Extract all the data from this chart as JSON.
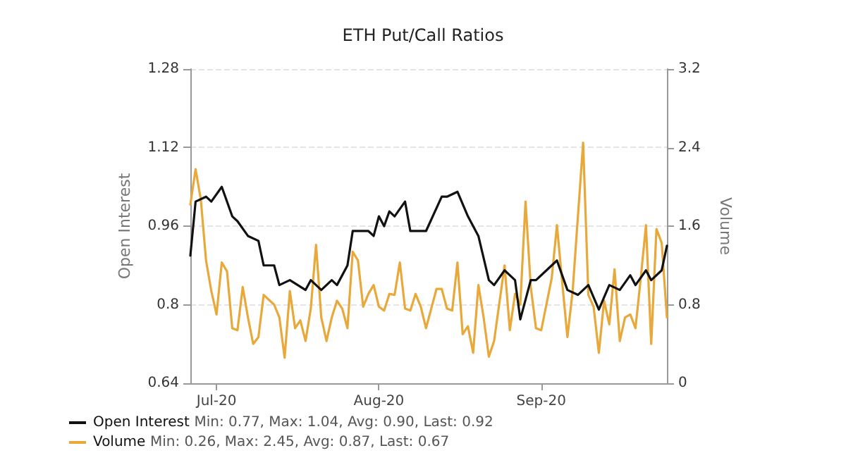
{
  "chart_data": {
    "type": "line",
    "title": "ETH Put/Call Ratios",
    "ylabel": "Open Interest",
    "y2label": "Volume",
    "xlim": [
      "2020-06-26",
      "2020-09-25"
    ],
    "xticks": [
      {
        "value": "2020-07-01",
        "label": "Jul-20"
      },
      {
        "value": "2020-08-01",
        "label": "Aug-20"
      },
      {
        "value": "2020-09-01",
        "label": "Sep-20"
      }
    ],
    "ylim": [
      0.64,
      1.28
    ],
    "yticks": [
      0.64,
      0.8,
      0.96,
      1.12,
      1.28
    ],
    "y2lim": [
      0,
      3.2
    ],
    "y2ticks": [
      0,
      0.8,
      1.6,
      2.4,
      3.2
    ],
    "grid": "y",
    "legend": "bottom left",
    "marker": "none",
    "line_style": "solid",
    "annotations": [
      "Min: 0.77, Max: 1.04, Avg: 0.90, Last: 0.92",
      "Min: 0.26, Max: 2.45, Avg: 0.87, Last: 0.67"
    ],
    "series": [
      {
        "name": "Open Interest",
        "color": "#111111",
        "x": [
          "2020-06-26",
          "2020-06-27",
          "2020-06-29",
          "2020-06-30",
          "2020-07-02",
          "2020-07-04",
          "2020-07-05",
          "2020-07-07",
          "2020-07-09",
          "2020-07-10",
          "2020-07-12",
          "2020-07-13",
          "2020-07-15",
          "2020-07-18",
          "2020-07-19",
          "2020-07-21",
          "2020-07-23",
          "2020-07-24",
          "2020-07-26",
          "2020-07-27",
          "2020-07-30",
          "2020-07-31",
          "2020-08-01",
          "2020-08-02",
          "2020-08-03",
          "2020-08-04",
          "2020-08-06",
          "2020-08-07",
          "2020-08-08",
          "2020-08-10",
          "2020-08-13",
          "2020-08-14",
          "2020-08-16",
          "2020-08-18",
          "2020-08-20",
          "2020-08-22",
          "2020-08-23",
          "2020-08-25",
          "2020-08-27",
          "2020-08-28",
          "2020-08-30",
          "2020-08-31",
          "2020-09-03",
          "2020-09-04",
          "2020-09-06",
          "2020-09-08",
          "2020-09-10",
          "2020-09-12",
          "2020-09-14",
          "2020-09-16",
          "2020-09-18",
          "2020-09-19",
          "2020-09-21",
          "2020-09-22",
          "2020-09-24",
          "2020-09-25"
        ],
        "values": [
          0.9,
          1.01,
          1.02,
          1.01,
          1.04,
          0.98,
          0.97,
          0.94,
          0.93,
          0.88,
          0.88,
          0.84,
          0.85,
          0.83,
          0.85,
          0.83,
          0.85,
          0.84,
          0.88,
          0.95,
          0.95,
          0.94,
          0.98,
          0.96,
          0.99,
          0.98,
          1.01,
          0.95,
          0.95,
          0.95,
          1.02,
          1.02,
          1.03,
          0.98,
          0.94,
          0.85,
          0.84,
          0.87,
          0.85,
          0.77,
          0.85,
          0.85,
          0.88,
          0.89,
          0.83,
          0.82,
          0.84,
          0.79,
          0.84,
          0.83,
          0.86,
          0.84,
          0.87,
          0.85,
          0.87,
          0.92
        ]
      },
      {
        "name": "Volume",
        "color": "#e8a83a",
        "axis": "y2",
        "x": [
          "2020-06-26",
          "2020-06-27",
          "2020-06-28",
          "2020-06-29",
          "2020-06-30",
          "2020-07-01",
          "2020-07-02",
          "2020-07-03",
          "2020-07-04",
          "2020-07-05",
          "2020-07-06",
          "2020-07-07",
          "2020-07-08",
          "2020-07-09",
          "2020-07-10",
          "2020-07-12",
          "2020-07-13",
          "2020-07-14",
          "2020-07-15",
          "2020-07-16",
          "2020-07-17",
          "2020-07-18",
          "2020-07-19",
          "2020-07-20",
          "2020-07-21",
          "2020-07-22",
          "2020-07-23",
          "2020-07-24",
          "2020-07-25",
          "2020-07-26",
          "2020-07-27",
          "2020-07-28",
          "2020-07-29",
          "2020-07-30",
          "2020-07-31",
          "2020-08-01",
          "2020-08-02",
          "2020-08-03",
          "2020-08-04",
          "2020-08-05",
          "2020-08-06",
          "2020-08-07",
          "2020-08-08",
          "2020-08-09",
          "2020-08-10",
          "2020-08-12",
          "2020-08-13",
          "2020-08-14",
          "2020-08-15",
          "2020-08-16",
          "2020-08-17",
          "2020-08-18",
          "2020-08-19",
          "2020-08-20",
          "2020-08-21",
          "2020-08-22",
          "2020-08-23",
          "2020-08-25",
          "2020-08-26",
          "2020-08-27",
          "2020-08-28",
          "2020-08-29",
          "2020-08-30",
          "2020-08-31",
          "2020-09-01",
          "2020-09-03",
          "2020-09-04",
          "2020-09-05",
          "2020-09-06",
          "2020-09-07",
          "2020-09-09",
          "2020-09-10",
          "2020-09-11",
          "2020-09-12",
          "2020-09-13",
          "2020-09-14",
          "2020-09-15",
          "2020-09-16",
          "2020-09-17",
          "2020-09-18",
          "2020-09-19",
          "2020-09-20",
          "2020-09-21",
          "2020-09-22",
          "2020-09-23",
          "2020-09-24",
          "2020-09-25"
        ],
        "values": [
          1.82,
          2.18,
          1.87,
          1.25,
          0.94,
          0.7,
          1.23,
          1.14,
          0.56,
          0.54,
          0.98,
          0.67,
          0.4,
          0.47,
          0.9,
          0.8,
          0.67,
          0.26,
          0.94,
          0.56,
          0.64,
          0.43,
          0.76,
          1.41,
          0.67,
          0.43,
          0.67,
          0.84,
          0.76,
          0.56,
          1.34,
          1.25,
          0.78,
          0.91,
          1.0,
          0.78,
          0.74,
          0.91,
          0.9,
          1.23,
          0.76,
          0.74,
          0.91,
          0.78,
          0.56,
          0.96,
          0.96,
          0.76,
          0.74,
          1.23,
          0.5,
          0.58,
          0.31,
          1.0,
          0.67,
          0.27,
          0.43,
          1.2,
          0.54,
          0.91,
          0.8,
          1.85,
          0.98,
          0.56,
          0.54,
          1.07,
          1.61,
          1.03,
          0.47,
          0.94,
          2.45,
          0.9,
          0.78,
          0.31,
          0.84,
          0.6,
          1.16,
          0.43,
          0.67,
          0.7,
          0.56,
          1.07,
          1.61,
          0.4,
          1.57,
          1.43,
          0.67
        ]
      }
    ]
  }
}
